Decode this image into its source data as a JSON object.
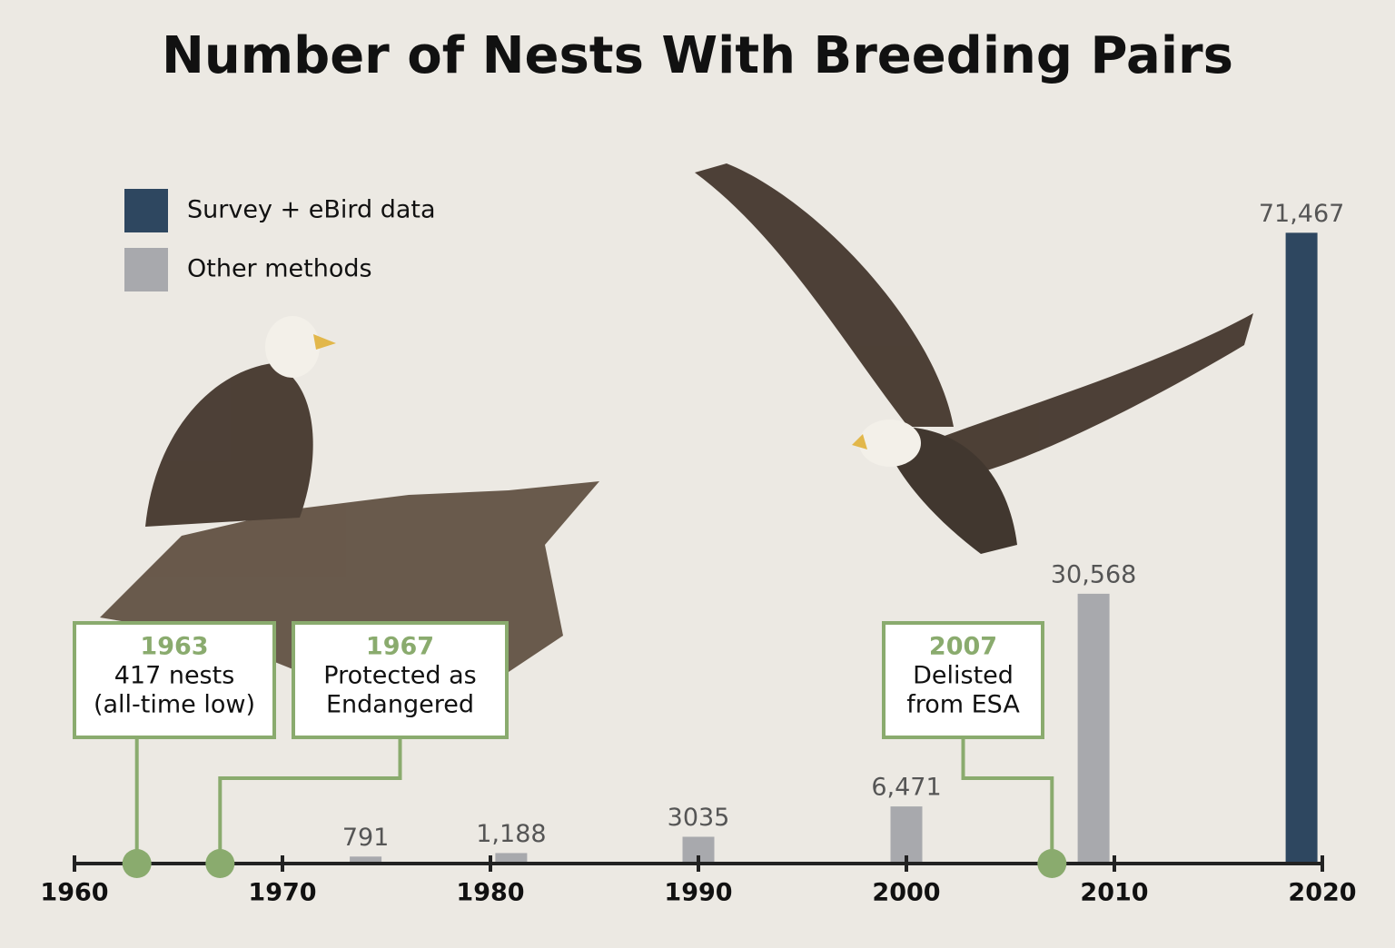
{
  "chart_data": {
    "type": "bar",
    "title": "Number of Nests With Breeding Pairs",
    "xlim": [
      1960,
      2020
    ],
    "xticks": [
      1960,
      1970,
      1980,
      1990,
      2000,
      2010,
      2020
    ],
    "ylim": [
      0,
      75000
    ],
    "series": [
      {
        "name": "Survey + eBird data",
        "color": "#2e4760",
        "x": [
          2019
        ],
        "values": [
          71467
        ],
        "value_labels": [
          "71,467"
        ]
      },
      {
        "name": "Other methods",
        "color": "#a8a9ad",
        "x": [
          1974,
          1981,
          1990,
          2000,
          2009
        ],
        "values": [
          791,
          1188,
          3035,
          6471,
          30568
        ],
        "value_labels": [
          "791",
          "1,188",
          "3035",
          "6,471",
          "30,568"
        ]
      }
    ],
    "annotations": [
      {
        "x": 1963,
        "text": [
          "417 nests",
          "(all-time low)"
        ]
      },
      {
        "x": 1967,
        "text": [
          "Protected as",
          "Endangered"
        ]
      },
      {
        "x": 2007,
        "text": [
          "Delisted",
          "from ESA"
        ]
      }
    ],
    "legend": "upper left"
  }
}
